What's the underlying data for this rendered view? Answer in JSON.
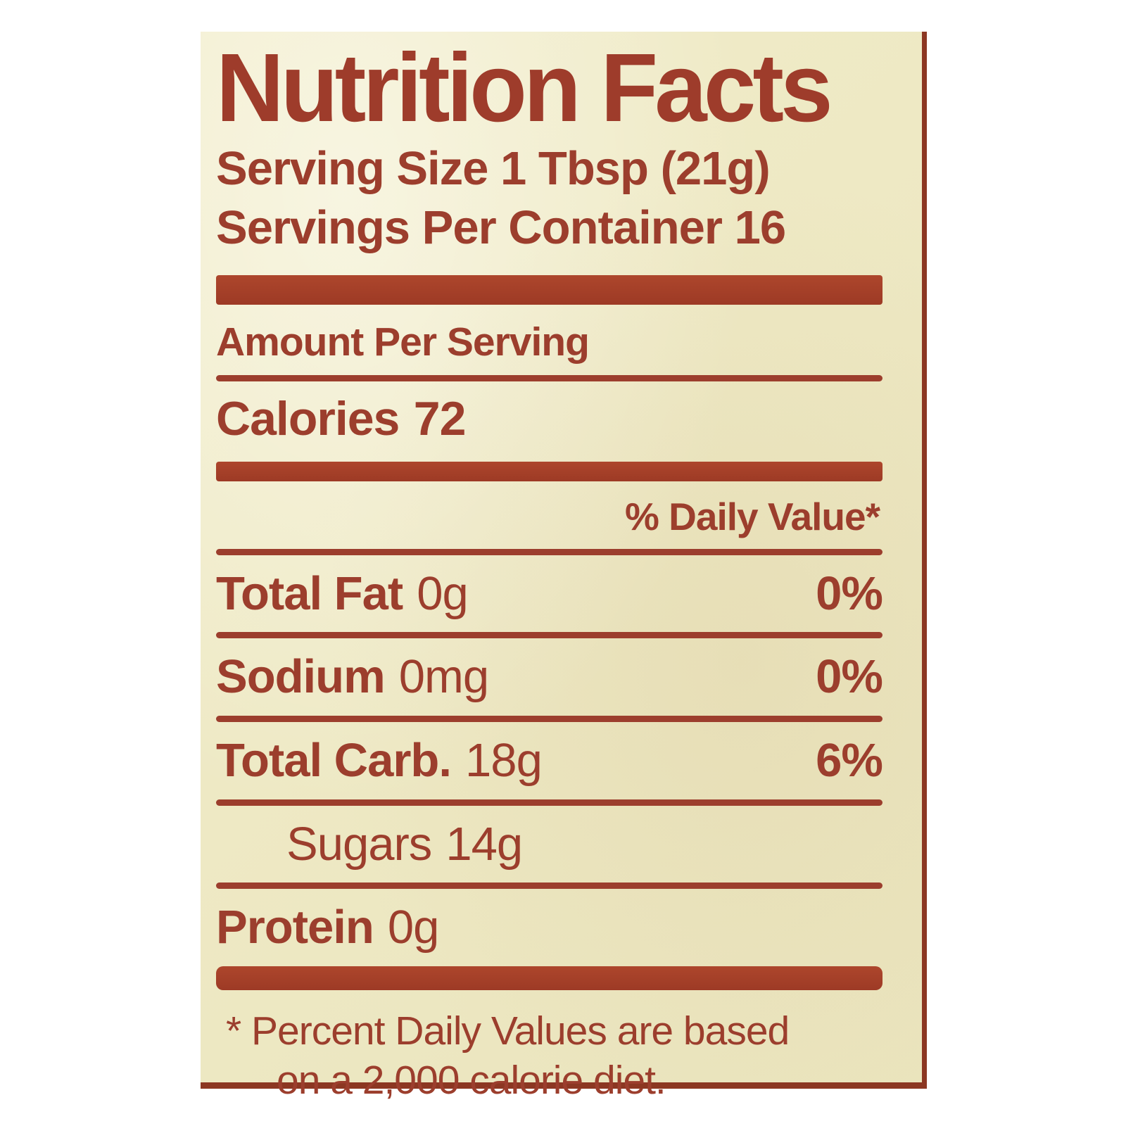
{
  "label": {
    "title": "Nutrition Facts",
    "serving_size": "Serving Size 1 Tbsp (21g)",
    "servings_per_container": "Servings Per Container 16",
    "amount_per_serving": "Amount Per Serving",
    "calories": {
      "name": "Calories",
      "value": "72"
    },
    "daily_value_header": "% Daily Value*",
    "rows": [
      {
        "name": "Total Fat",
        "amount": "0g",
        "dv": "0%"
      },
      {
        "name": "Sodium",
        "amount": "0mg",
        "dv": "0%"
      },
      {
        "name": "Total Carb.",
        "amount": "18g",
        "dv": "6%"
      },
      {
        "name": "Sugars",
        "amount": "14g",
        "dv": ""
      },
      {
        "name": "Protein",
        "amount": "0g",
        "dv": ""
      }
    ],
    "footnote": {
      "line1": "* Percent Daily Values are based",
      "line2": "on a 2,000 calorie diet."
    },
    "colors": {
      "text_red": "#9c3e2d",
      "bar_red": "#a5412a",
      "edge_dark_red": "#8c3722",
      "label_background": "#eee9c4",
      "page_background": "#ffffff"
    }
  }
}
